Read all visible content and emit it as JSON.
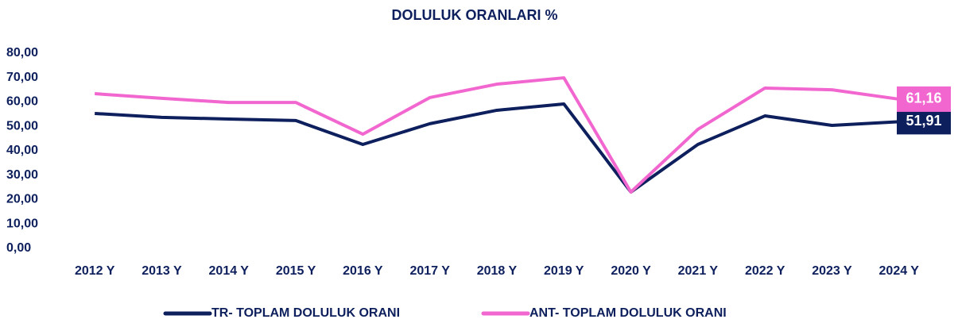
{
  "chart_data": {
    "type": "line",
    "title": "DOLULUK ORANLARI %",
    "categories": [
      "2012 Y",
      "2013 Y",
      "2014 Y",
      "2015 Y",
      "2016 Y",
      "2017 Y",
      "2018 Y",
      "2019 Y",
      "2020 Y",
      "2021 Y",
      "2022 Y",
      "2023 Y",
      "2024 Y"
    ],
    "series": [
      {
        "name": "TR- TOPLAM DOLULUK ORANI",
        "color": "#0d1f5c",
        "values": [
          55.3,
          53.7,
          53.0,
          52.4,
          42.6,
          51.1,
          56.6,
          59.2,
          23.1,
          42.6,
          54.3,
          50.4,
          51.91
        ],
        "value_labels": [
          null,
          null,
          null,
          null,
          null,
          null,
          null,
          null,
          null,
          null,
          null,
          null,
          "51,91"
        ]
      },
      {
        "name": "ANT- TOPLAM DOLULUK ORANI",
        "color": "#f266cf",
        "values": [
          63.4,
          61.5,
          59.8,
          59.8,
          46.8,
          61.8,
          67.3,
          69.9,
          23.1,
          48.8,
          65.7,
          65.0,
          61.16
        ],
        "value_labels": [
          null,
          null,
          null,
          null,
          null,
          null,
          null,
          null,
          null,
          null,
          null,
          null,
          "61,16"
        ]
      }
    ],
    "ylim": [
      0,
      80
    ],
    "yticks": [
      {
        "value": 0,
        "label": "0,00"
      },
      {
        "value": 10,
        "label": "10,00"
      },
      {
        "value": 20,
        "label": "20,00"
      },
      {
        "value": 30,
        "label": "30,00"
      },
      {
        "value": 40,
        "label": "40,00"
      },
      {
        "value": 50,
        "label": "50,00"
      },
      {
        "value": 60,
        "label": "60,00"
      },
      {
        "value": 70,
        "label": "70,00"
      },
      {
        "value": 80,
        "label": "80,00"
      }
    ],
    "grid": false,
    "legend": "bottom"
  }
}
